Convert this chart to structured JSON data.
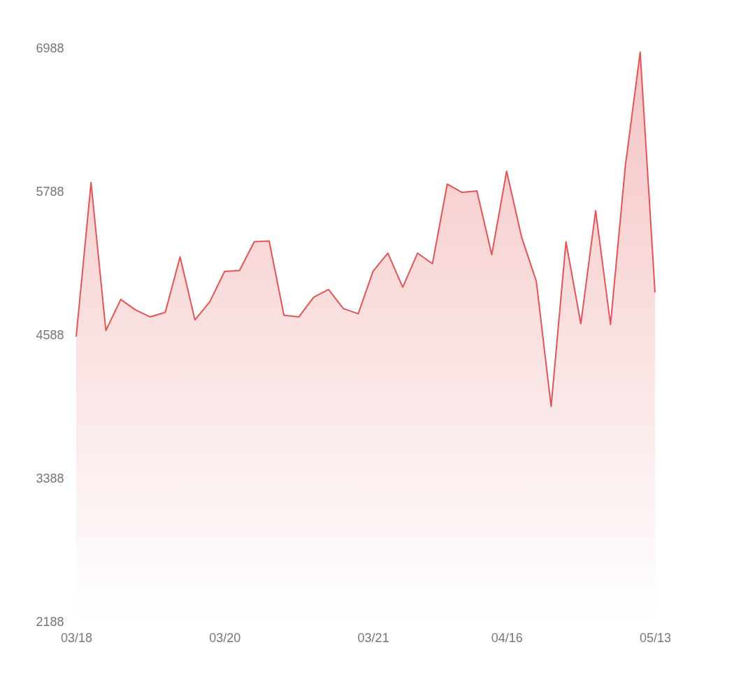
{
  "chart_data": {
    "type": "area",
    "categories": [
      "03/18",
      null,
      null,
      null,
      null,
      null,
      null,
      null,
      null,
      null,
      "03/20",
      null,
      null,
      null,
      null,
      null,
      null,
      null,
      null,
      null,
      "03/21",
      null,
      null,
      null,
      null,
      null,
      null,
      null,
      null,
      "04/16",
      null,
      null,
      null,
      null,
      null,
      null,
      null,
      null,
      null,
      "05/13"
    ],
    "values": [
      4575,
      5864,
      4626,
      4886,
      4798,
      4740,
      4778,
      5242,
      4715,
      4867,
      5121,
      5128,
      5369,
      5375,
      4753,
      4740,
      4905,
      4969,
      4810,
      4766,
      5121,
      5274,
      4988,
      5274,
      5185,
      5851,
      5782,
      5794,
      5261,
      5959,
      5413,
      5039,
      3991,
      5369,
      4683,
      5629,
      4677,
      6004,
      6956,
      4944
    ],
    "color": "#e35456",
    "ylim": [
      2188,
      6988
    ],
    "yticks": [
      2188,
      3388,
      4588,
      5788,
      6988
    ],
    "grid": false,
    "marker": "none",
    "line_style": "solid"
  }
}
